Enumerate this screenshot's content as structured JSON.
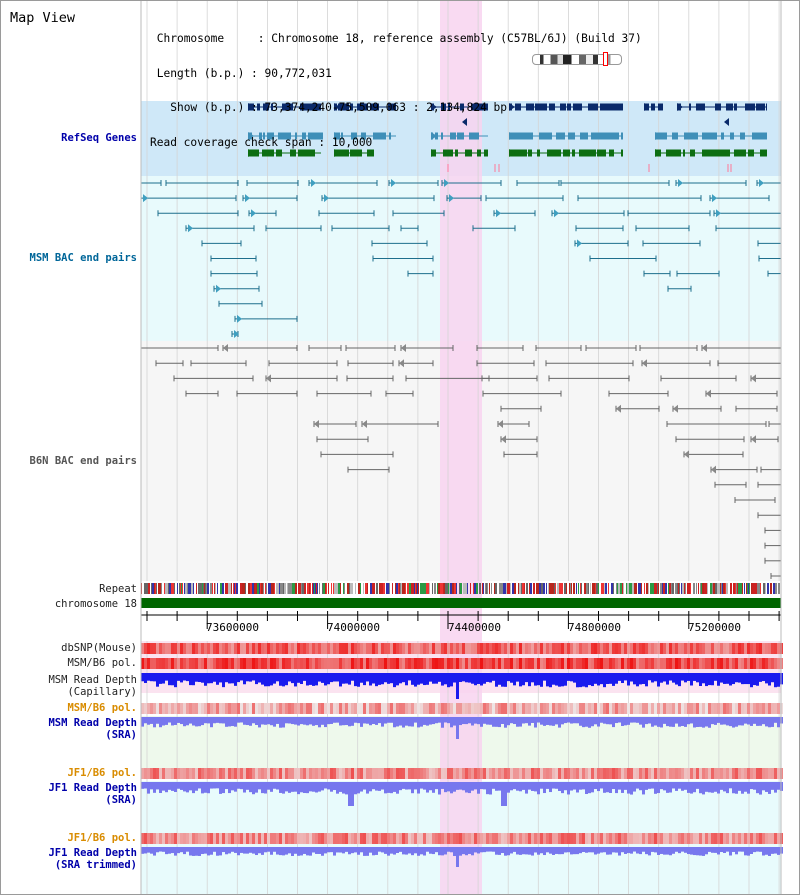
{
  "view_title": "Map View",
  "header": {
    "chromosome_key": "Chromosome     ",
    "chromosome_value": "Chromosome 18, reference assembly (C57BL/6J) (Build 37)",
    "length_key": "Length (b.p.) ",
    "length_value": "90,772,031",
    "show_key": "  Show (b.p.) ",
    "show_value": "73,374,240-75,509,063 : 2,134,824 bp",
    "coverage_key": "Read coverage check span ",
    "coverage_value": "10,000"
  },
  "tracks": {
    "refseq": "RefSeq Genes",
    "msm_bac": "MSM BAC end pairs",
    "b6n_bac": "B6N BAC end pairs",
    "repeat": "Repeat",
    "chromosome": "chromosome 18",
    "dbsnp": "dbSNP(Mouse)",
    "msm_b6_pol_1": "MSM/B6 pol.",
    "msm_read_cap": "MSM Read Depth\n(Capillary)",
    "msm_b6_pol_2": "MSM/B6 pol.",
    "msm_read_sra": "MSM Read Depth\n(SRA)",
    "jf1_b6_pol_1": "JF1/B6 pol.",
    "jf1_read_sra": "JF1 Read Depth\n(SRA)",
    "jf1_b6_pol_2": "JF1/B6 pol.",
    "jf1_read_trim": "JF1 Read Depth\n(SRA trimmed)"
  },
  "ruler": {
    "ticks": [
      "73600000",
      "74000000",
      "74400000",
      "74800000",
      "75200000"
    ]
  },
  "colors": {
    "refseq_bg": "#cfe8f8",
    "bac_bg": "#e8fafc",
    "highlight": "#f8d3f0",
    "chromosome": "#006600",
    "msm_line": "#1d6e8c",
    "b6n_line": "#666666",
    "depth_blue": "#1a1aee",
    "depth_light": "#7777ee",
    "pol_red": "#ee3333"
  }
}
